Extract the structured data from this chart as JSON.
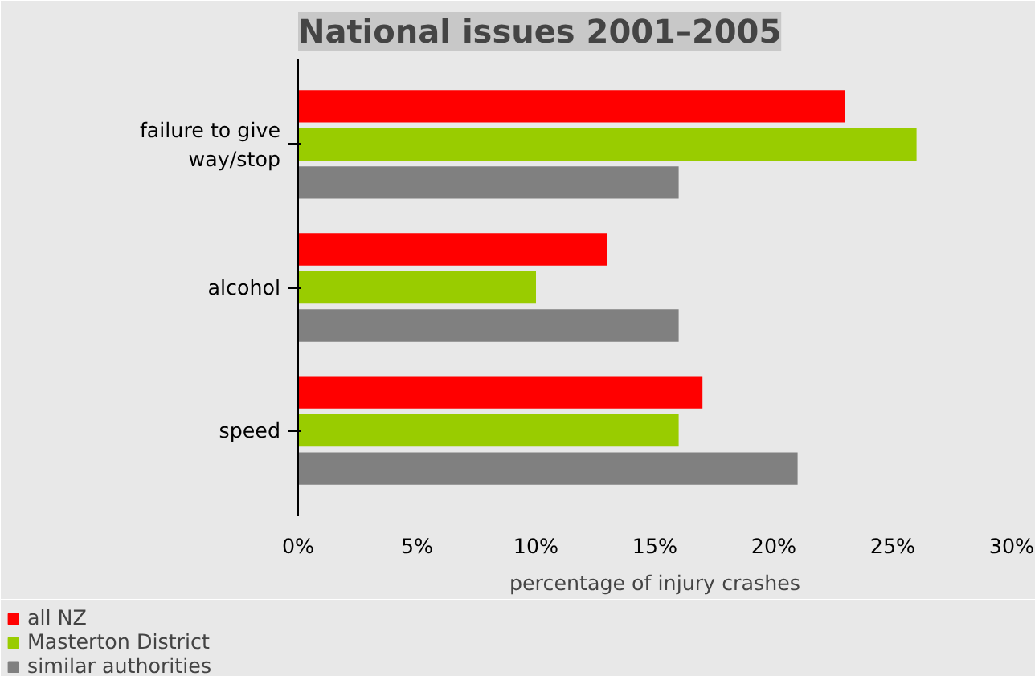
{
  "chart_data": {
    "type": "bar",
    "orientation": "horizontal",
    "title": "National issues 2001–2005",
    "xlabel": "percentage of injury crashes",
    "categories": [
      "failure to give way/stop",
      "alcohol",
      "speed"
    ],
    "series": [
      {
        "name": "all NZ",
        "color": "#ff0000",
        "values": [
          23,
          13,
          17
        ]
      },
      {
        "name": "Masterton District",
        "color": "#99cc00",
        "values": [
          26,
          10,
          16
        ]
      },
      {
        "name": "similar authorities",
        "color": "#808080",
        "values": [
          16,
          16,
          21
        ]
      }
    ],
    "xlim": [
      0,
      30
    ],
    "xticks": [
      {
        "value": 0,
        "label": "0%"
      },
      {
        "value": 5,
        "label": "5%"
      },
      {
        "value": 10,
        "label": "10%"
      },
      {
        "value": 15,
        "label": "15%"
      },
      {
        "value": 20,
        "label": "20%"
      },
      {
        "value": 25,
        "label": "25%"
      },
      {
        "value": 30,
        "label": "30%"
      }
    ],
    "grid": false,
    "legend": "bottom left"
  }
}
